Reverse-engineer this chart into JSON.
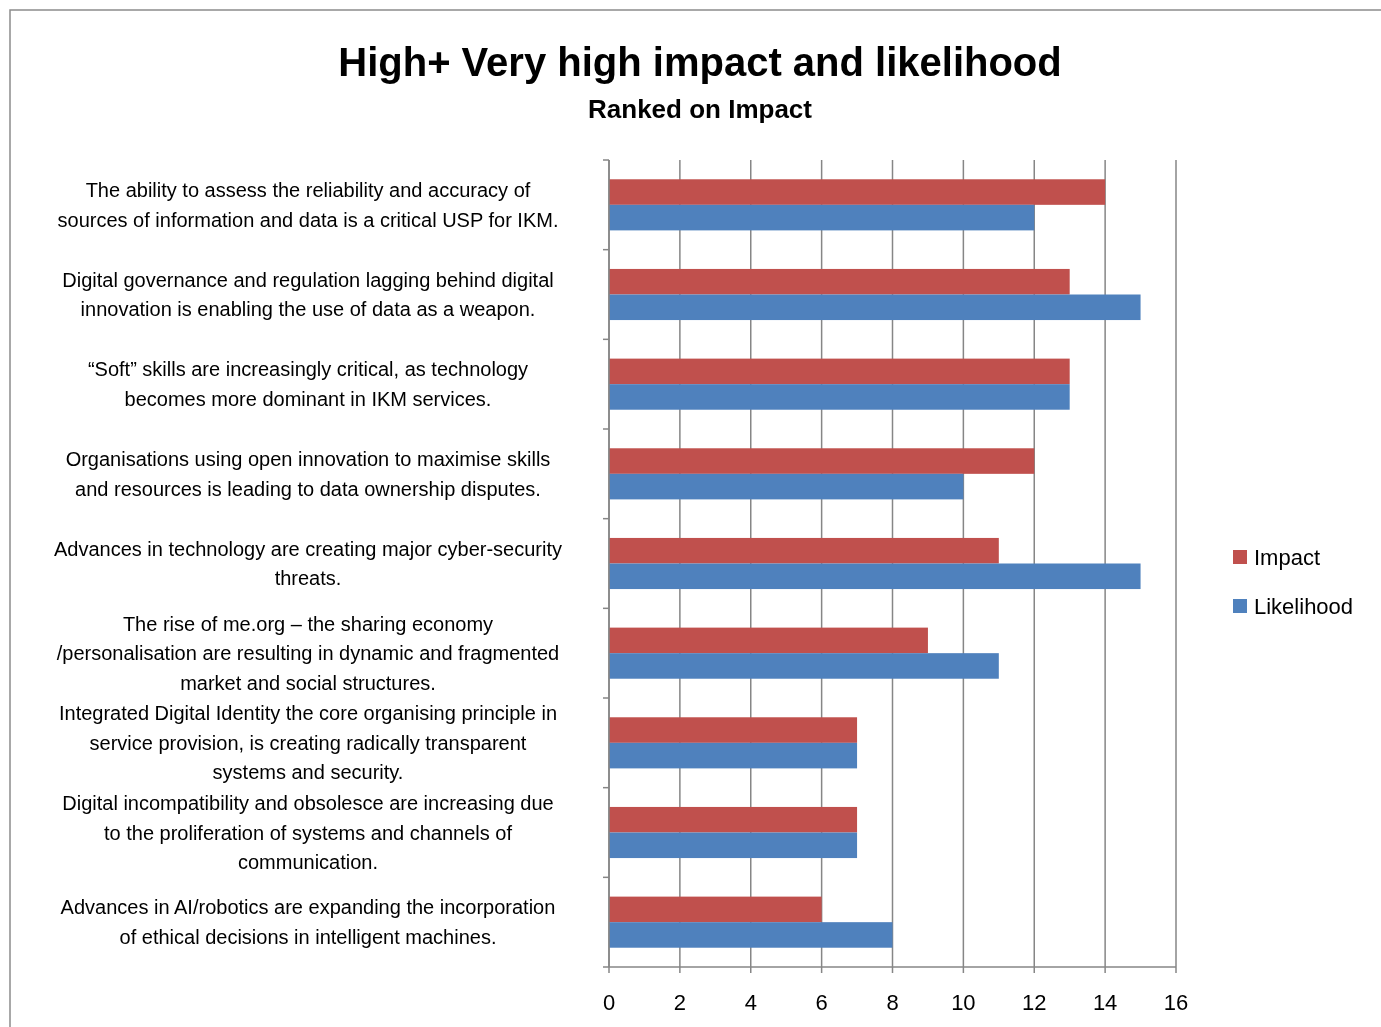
{
  "chart_data": {
    "type": "bar",
    "orientation": "horizontal",
    "title": "High+ Very high impact and likelihood",
    "subtitle": "Ranked on Impact",
    "categories": [
      "The ability to assess the reliability and accuracy of\nsources of information and data is a critical USP for IKM.",
      "Digital governance and regulation lagging behind digital\ninnovation is enabling the use of data as a weapon.",
      "“Soft” skills are increasingly critical, as technology\nbecomes more dominant in IKM services.",
      "Organisations using open innovation to maximise skills\nand resources is leading to data ownership disputes.",
      "Advances in technology are creating major cyber-security\nthreats.",
      "The rise of me.org – the sharing economy\n/personalisation are resulting in dynamic and fragmented\nmarket and social structures.",
      "Integrated Digital Identity the core organising principle in\nservice provision, is creating radically transparent\nsystems and security.",
      "Digital incompatibility and obsolesce are increasing due\nto the proliferation of systems and channels of\ncommunication.",
      "Advances in AI/robotics are expanding the incorporation\nof ethical decisions in intelligent machines."
    ],
    "series": [
      {
        "name": "Impact",
        "color": "#c0504d",
        "values": [
          14,
          13,
          13,
          12,
          11,
          9,
          7,
          7,
          6
        ]
      },
      {
        "name": "Likelihood",
        "color": "#4f81bd",
        "values": [
          12,
          15,
          13,
          10,
          15,
          11,
          7,
          7,
          8
        ]
      }
    ],
    "xlim": [
      0,
      16
    ],
    "xticks": [
      0,
      2,
      4,
      6,
      8,
      10,
      12,
      14,
      16
    ],
    "grid": "x",
    "legend": "right"
  }
}
